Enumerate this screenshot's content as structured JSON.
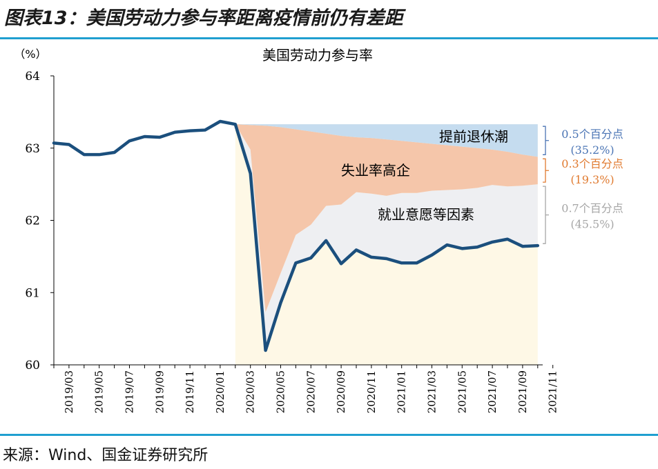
{
  "header": {
    "title": "图表13：美国劳动力参与率距离疫情前仍有差距"
  },
  "footer": {
    "source": "来源：Wind、国金证券研究所"
  },
  "colors": {
    "line": "#1b4f7d",
    "retire_fill": "#c5dcef",
    "unemp_fill": "#f5c6aa",
    "employ_fill": "#eeeff2",
    "base_fill": "#fef8e6",
    "accent_rule": "#1f9fd0",
    "annot_blue": "#4a74b4",
    "annot_orange": "#e07a2f",
    "annot_gray": "#a6a6a6"
  },
  "chart_data": {
    "type": "line",
    "title": "美国劳动力参与率",
    "unit_label": "（%）",
    "ylim": [
      60,
      64
    ],
    "yticks": [
      "60",
      "61",
      "62",
      "63",
      "64"
    ],
    "x_labels": [
      "2019/03",
      "2019/05",
      "2019/07",
      "2019/09",
      "2019/11",
      "2020/01",
      "2020/03",
      "2020/05",
      "2020/07",
      "2020/09",
      "2020/11",
      "2021/01",
      "2021/03",
      "2021/05",
      "2021/07",
      "2021/09",
      "2021/11"
    ],
    "x": [
      "2019/02",
      "2019/03",
      "2019/04",
      "2019/05",
      "2019/06",
      "2019/07",
      "2019/08",
      "2019/09",
      "2019/10",
      "2019/11",
      "2019/12",
      "2020/01",
      "2020/02",
      "2020/03",
      "2020/04",
      "2020/05",
      "2020/06",
      "2020/07",
      "2020/08",
      "2020/09",
      "2020/10",
      "2020/11",
      "2020/12",
      "2021/01",
      "2021/02",
      "2021/03",
      "2021/04",
      "2021/05",
      "2021/06",
      "2021/07",
      "2021/08",
      "2021/09",
      "2021/10"
    ],
    "series": [
      {
        "role": "line",
        "values": [
          63.07,
          63.05,
          62.91,
          62.91,
          62.94,
          63.1,
          63.16,
          63.15,
          63.22,
          63.24,
          63.25,
          63.37,
          63.33,
          62.65,
          60.2,
          60.86,
          61.41,
          61.48,
          61.72,
          61.4,
          61.59,
          61.49,
          61.47,
          61.41,
          61.41,
          61.52,
          61.66,
          61.61,
          61.63,
          61.7,
          61.74,
          61.64,
          61.65
        ]
      }
    ],
    "band_x": [
      "2020/02",
      "2020/03",
      "2020/04",
      "2020/05",
      "2020/06",
      "2020/07",
      "2020/08",
      "2020/09",
      "2020/10",
      "2020/11",
      "2020/12",
      "2021/01",
      "2021/02",
      "2021/03",
      "2021/04",
      "2021/05",
      "2021/06",
      "2021/07",
      "2021/08",
      "2021/09",
      "2021/10"
    ],
    "bands": {
      "total_top": 63.33,
      "retire_lower": [
        63.33,
        63.32,
        63.31,
        63.29,
        63.26,
        63.23,
        63.2,
        63.17,
        63.15,
        63.14,
        63.12,
        63.1,
        63.08,
        63.06,
        63.04,
        63.02,
        63.0,
        62.98,
        62.95,
        62.91,
        62.88
      ],
      "unemp_lower": [
        63.33,
        62.98,
        60.73,
        61.27,
        61.8,
        61.94,
        62.2,
        62.22,
        62.39,
        62.37,
        62.34,
        62.38,
        62.38,
        62.41,
        62.42,
        62.43,
        62.45,
        62.49,
        62.47,
        62.48,
        62.5
      ]
    },
    "band_labels": {
      "retire": "提前退休潮",
      "unemp": "失业率高企",
      "employ": "就业意愿等因素"
    },
    "annotations": [
      {
        "line1": "0.5个百分点",
        "line2": "(35.2%)",
        "color_key": "annot_blue"
      },
      {
        "line1": "0.3个百分点",
        "line2": "(19.3%)",
        "color_key": "annot_orange"
      },
      {
        "line1": "0.7个百分点",
        "line2": "(45.5%)",
        "color_key": "annot_gray"
      }
    ],
    "grid": false
  }
}
